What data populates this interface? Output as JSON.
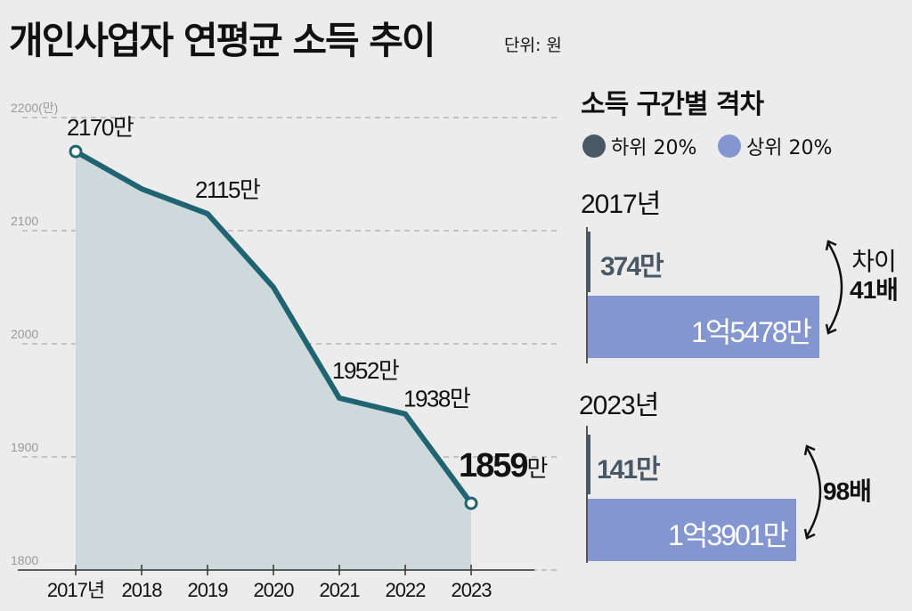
{
  "title": "개인사업자 연평균 소득 추이",
  "unit": "단위: 원",
  "chart_data": [
    {
      "type": "area",
      "title": "개인사업자 연평균 소득 추이",
      "ylabel": "(만)",
      "categories": [
        "2017년",
        "2018",
        "2019",
        "2020",
        "2021",
        "2022",
        "2023"
      ],
      "values": [
        2170,
        2137,
        2115,
        2050,
        1952,
        1938,
        1859
      ],
      "ylim": [
        1800,
        2200
      ],
      "yticks": [
        "1800",
        "1900",
        "2000",
        "2100",
        "2200(만)"
      ],
      "ytick_values": [
        1800,
        1900,
        2000,
        2100,
        2200
      ],
      "grid": true,
      "point_labels": [
        {
          "index": 0,
          "text": "2170만"
        },
        {
          "index": 2,
          "text": "2115만"
        },
        {
          "index": 4,
          "text": "1952만"
        },
        {
          "index": 5,
          "text": "1938만"
        },
        {
          "index": 6,
          "text": "1859",
          "suffix": "만"
        }
      ],
      "line_color": "#1f6470",
      "fill_color": "#cdd9da"
    },
    {
      "type": "bar",
      "title": "소득 구간별 격차",
      "legend": [
        {
          "name": "하위 20%",
          "color": "#4a5866"
        },
        {
          "name": "상위 20%",
          "color": "#8496d0"
        }
      ],
      "groups": [
        {
          "year": "2017년",
          "low": 374,
          "low_label": "374만",
          "high": 15478,
          "high_label": "1억5478만",
          "gap_label": "차이",
          "gap_value": "41배"
        },
        {
          "year": "2023년",
          "low": 141,
          "low_label": "141만",
          "high": 13901,
          "high_label": "1억3901만",
          "gap_value": "98배"
        }
      ]
    }
  ]
}
